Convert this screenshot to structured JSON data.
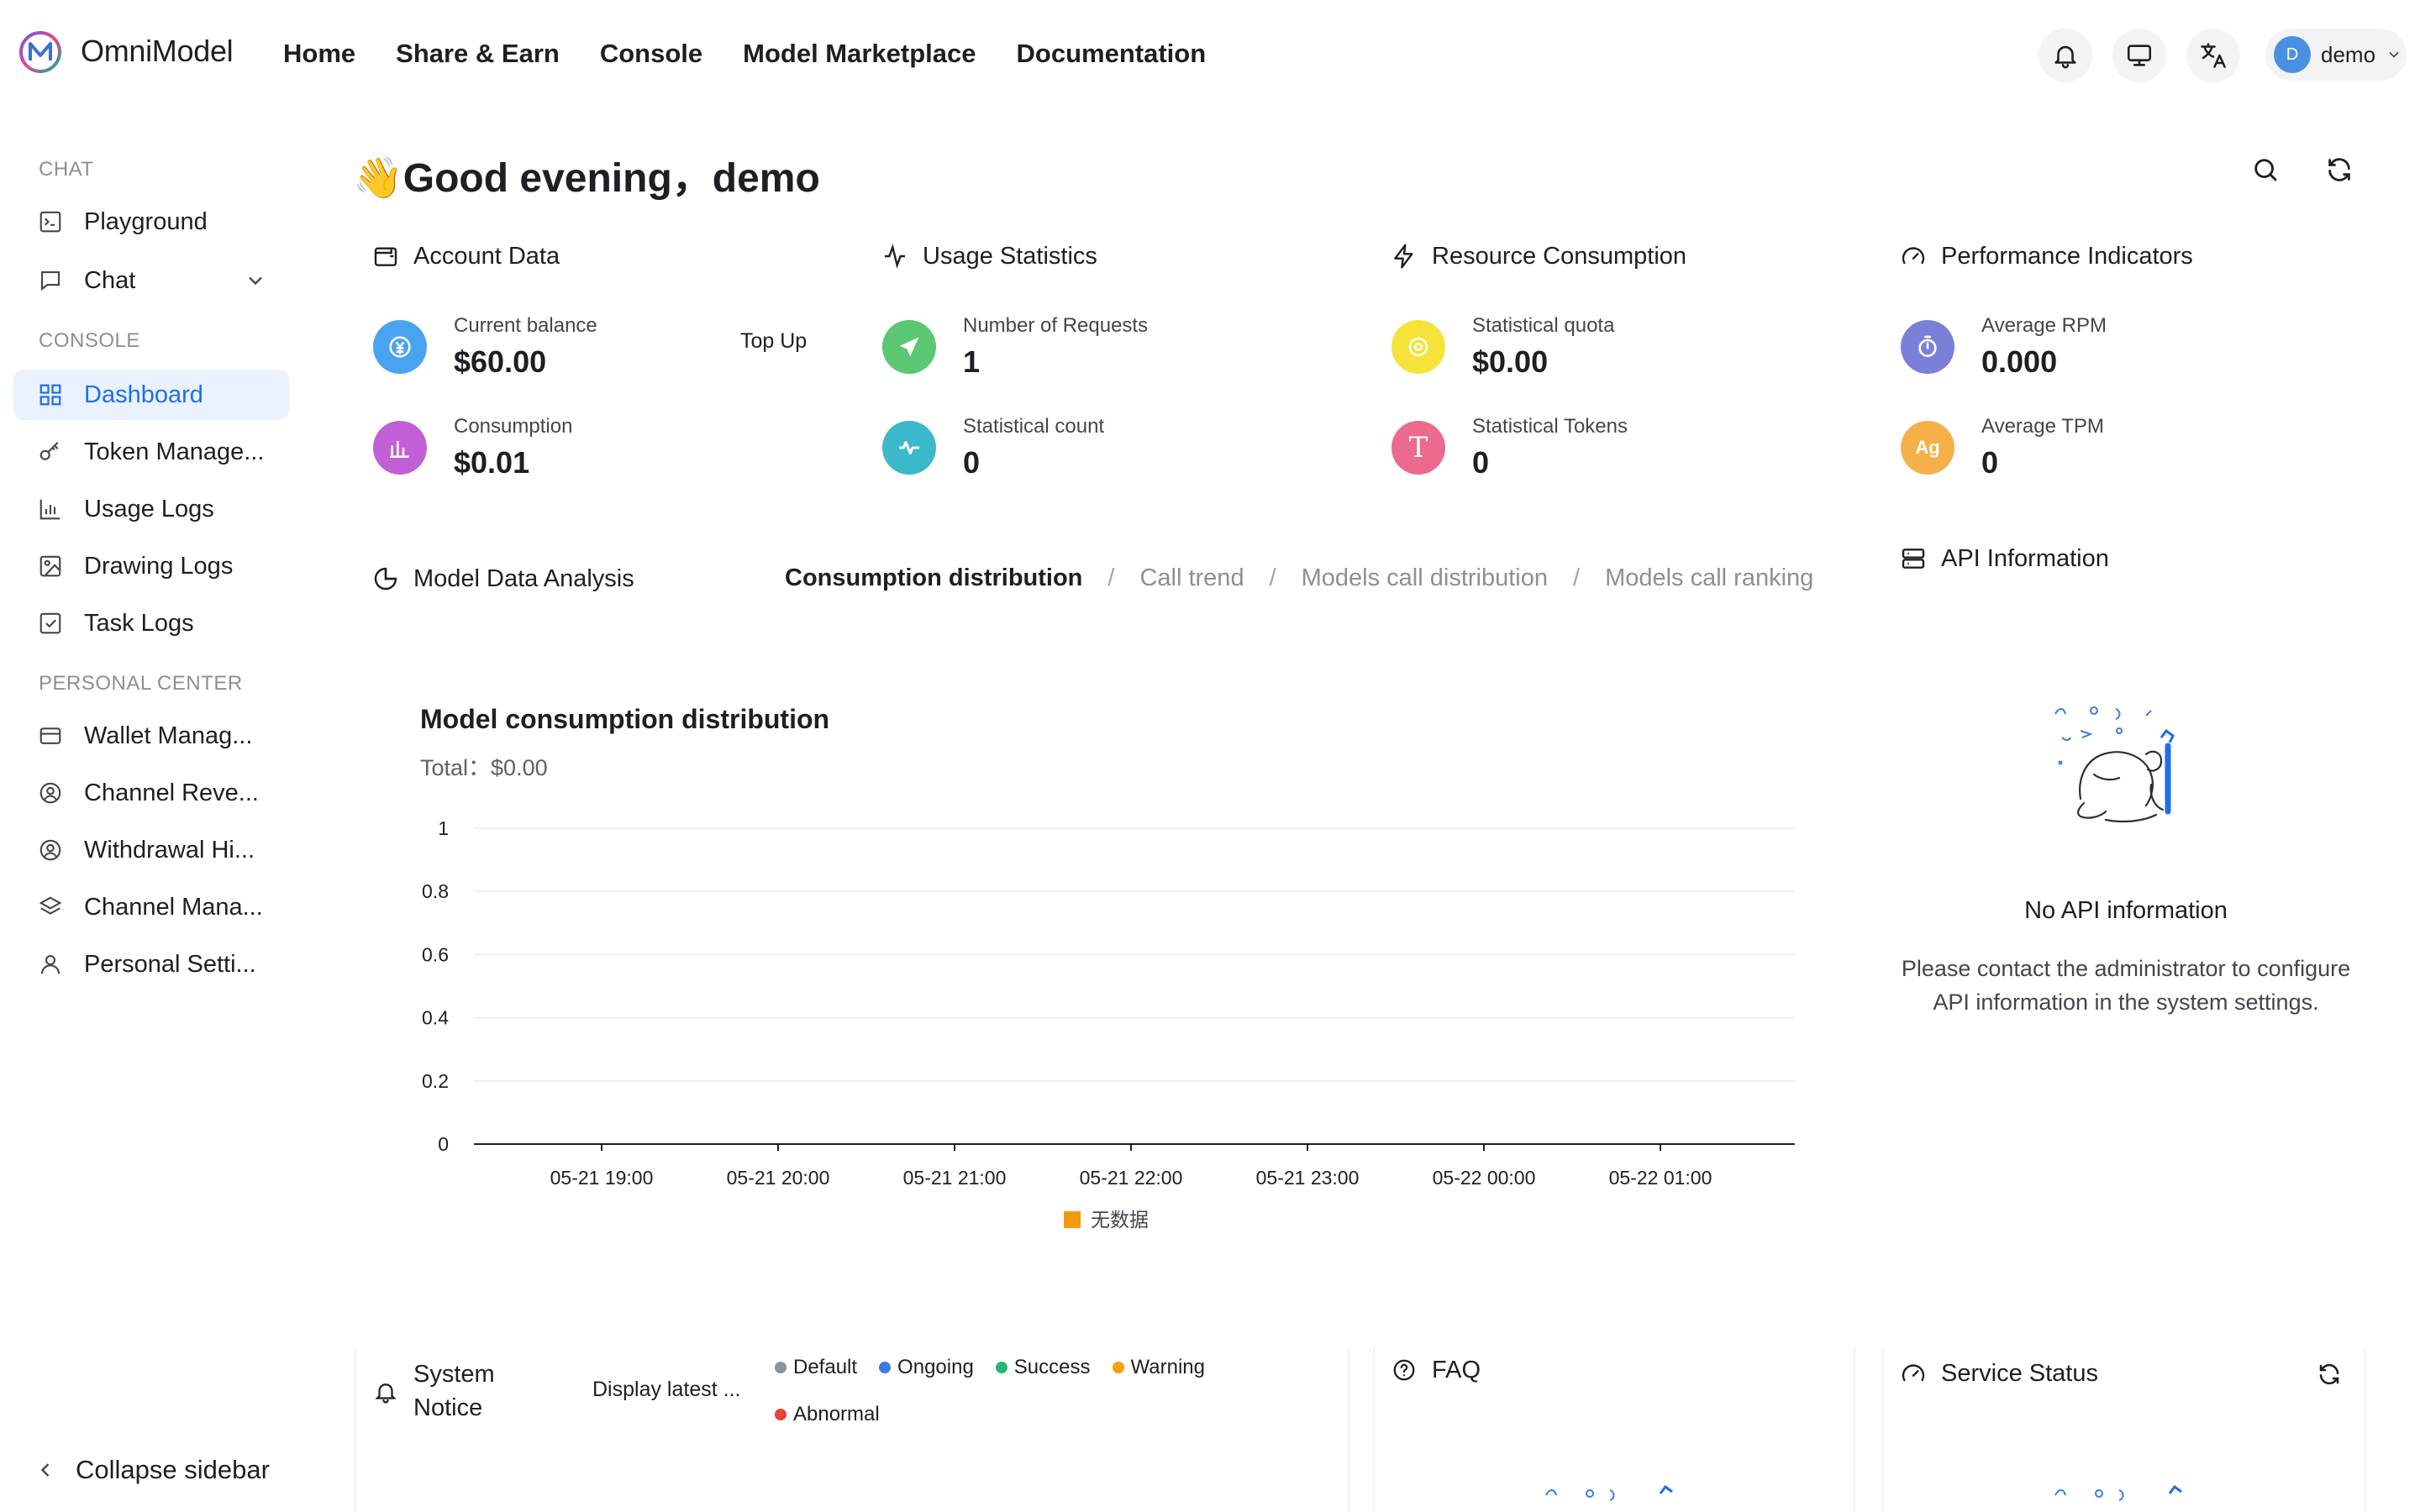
{
  "brand": {
    "name": "OmniModel"
  },
  "nav": {
    "items": [
      {
        "label": "Home"
      },
      {
        "label": "Share & Earn"
      },
      {
        "label": "Console"
      },
      {
        "label": "Model Marketplace"
      },
      {
        "label": "Documentation"
      }
    ]
  },
  "topbar": {
    "notifications_icon": "bell-icon",
    "display_icon": "monitor-icon",
    "language_icon": "translate-icon",
    "user": {
      "avatar_letter": "D",
      "name": "demo"
    }
  },
  "sidebar": {
    "sections": [
      {
        "title": "CHAT"
      },
      {
        "title": "CONSOLE"
      },
      {
        "title": "PERSONAL CENTER"
      }
    ],
    "chat_items": [
      {
        "label": "Playground",
        "icon": "terminal-icon"
      },
      {
        "label": "Chat",
        "icon": "chat-bubble-icon"
      }
    ],
    "console_items": [
      {
        "label": "Dashboard",
        "icon": "dashboard-icon",
        "active": true
      },
      {
        "label": "Token Manage...",
        "icon": "key-icon"
      },
      {
        "label": "Usage Logs",
        "icon": "bar-chart-icon"
      },
      {
        "label": "Drawing Logs",
        "icon": "image-icon"
      },
      {
        "label": "Task Logs",
        "icon": "checkbox-icon"
      }
    ],
    "personal_items": [
      {
        "label": "Wallet Manag...",
        "icon": "card-icon"
      },
      {
        "label": "Channel Reve...",
        "icon": "user-circle-icon"
      },
      {
        "label": "Withdrawal Hi...",
        "icon": "user-circle-icon"
      },
      {
        "label": "Channel Mana...",
        "icon": "layers-icon"
      },
      {
        "label": "Personal Setti...",
        "icon": "user-icon"
      }
    ],
    "collapse_label": "Collapse sidebar"
  },
  "greeting": {
    "emoji": "👋",
    "text": "Good evening，demo"
  },
  "cards": {
    "account": {
      "title": "Account Data",
      "balance_label": "Current balance",
      "balance_value": "$60.00",
      "topup_label": "Top Up",
      "consumption_label": "Consumption",
      "consumption_value": "$0.01"
    },
    "usage": {
      "title": "Usage Statistics",
      "requests_label": "Number of Requests",
      "requests_value": "1",
      "count_label": "Statistical count",
      "count_value": "0"
    },
    "resource": {
      "title": "Resource Consumption",
      "quota_label": "Statistical quota",
      "quota_value": "$0.00",
      "tokens_label": "Statistical Tokens",
      "tokens_value": "0",
      "tokens_badge": "T"
    },
    "performance": {
      "title": "Performance Indicators",
      "rpm_label": "Average RPM",
      "rpm_value": "0.000",
      "tpm_label": "Average TPM",
      "tpm_value": "0",
      "tpm_badge": "Ag"
    }
  },
  "analysis": {
    "title": "Model Data Analysis",
    "tabs": [
      {
        "label": "Consumption distribution",
        "active": true
      },
      {
        "label": "Call trend"
      },
      {
        "label": "Models call distribution"
      },
      {
        "label": "Models call ranking"
      }
    ]
  },
  "chart_data": {
    "type": "bar",
    "title": "Model consumption distribution",
    "subtitle": "Total：$0.00",
    "categories": [
      "05-21 19:00",
      "05-21 20:00",
      "05-21 21:00",
      "05-21 22:00",
      "05-21 23:00",
      "05-22 00:00",
      "05-22 01:00"
    ],
    "series": [
      {
        "name": "无数据",
        "values": [
          0,
          0,
          0,
          0,
          0,
          0,
          0
        ],
        "color": "#f59a0c"
      }
    ],
    "y_ticks": [
      "0",
      "0.2",
      "0.4",
      "0.6",
      "0.8",
      "1"
    ],
    "ylim": [
      0,
      1
    ],
    "grid": true,
    "legend": "bottom-center"
  },
  "api_info": {
    "title": "API Information",
    "empty_title": "No API information",
    "empty_desc": "Please contact the administrator to configure API information in the system settings."
  },
  "notice": {
    "title_line1": "System",
    "title_line2": "Notice",
    "display_latest": "Display latest ...",
    "legend": [
      {
        "label": "Default",
        "color": "#8a93a2"
      },
      {
        "label": "Ongoing",
        "color": "#3b7ddd"
      },
      {
        "label": "Success",
        "color": "#1fb876"
      },
      {
        "label": "Warning",
        "color": "#f5a00c"
      },
      {
        "label": "Abnormal",
        "color": "#e8423b"
      }
    ]
  },
  "faq": {
    "title": "FAQ"
  },
  "service": {
    "title": "Service Status"
  },
  "colors": {
    "accent": "#1e6fe8",
    "balance": "#4aa3f0",
    "consumption": "#c25fd6",
    "requests": "#5bc772",
    "count": "#3bb8c9",
    "quota": "#f6e33a",
    "tokens": "#ec6a8c",
    "rpm": "#7a80d8",
    "tpm": "#f5b04a"
  }
}
